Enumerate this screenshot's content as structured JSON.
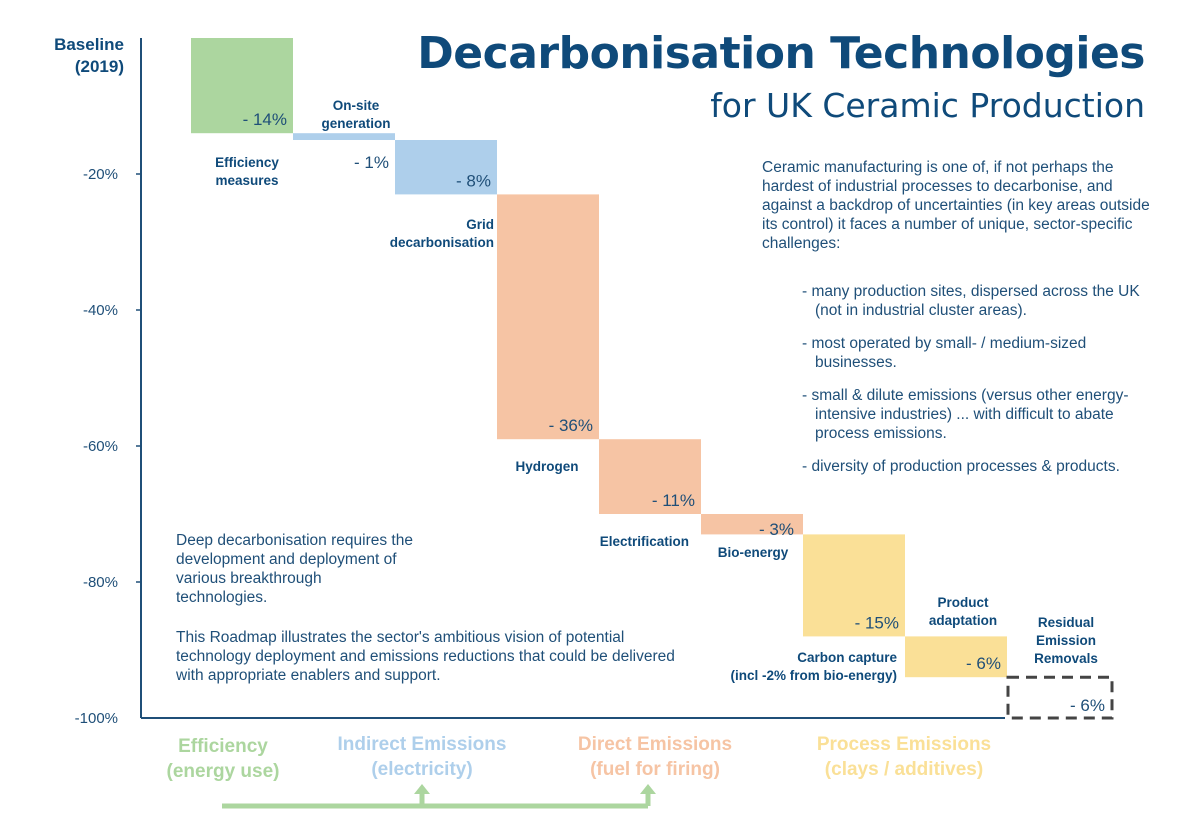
{
  "title": "Decarbonisation Technologies",
  "subtitle": "for UK Ceramic Production",
  "intro_text": "Ceramic manufacturing is one of, if not perhaps the hardest of industrial processes to decarbonise, and against a backdrop of uncertainties (in key areas outside its control) it faces a number of unique, sector-specific challenges:",
  "bullets": [
    "- many production sites, dispersed across the UK (not in industrial cluster areas).",
    "- most operated by small- / medium-sized businesses.",
    "- small & dilute emissions (versus other energy-intensive industries) ... with difficult to abate process emissions.",
    "- diversity of production processes & products."
  ],
  "note_1": "Deep decarbonisation requires the development and deployment of various breakthrough technologies.",
  "note_2": "This Roadmap illustrates the sector's ambitious vision of potential technology deployment and emissions reductions that could be delivered with appropriate enablers and support.",
  "colors": {
    "title": "#0f4a7a",
    "efficiency": "#acd69f",
    "indirect": "#aecfeb",
    "direct": "#f6c4a4",
    "process": "#fae097",
    "residual": "#444444"
  },
  "chart_data": {
    "type": "waterfall",
    "ylim": [
      -100,
      0
    ],
    "yticks": [
      0,
      -20,
      -40,
      -60,
      -80,
      -100
    ],
    "ytick_labels": [
      "Baseline\n(2019)",
      "-20%",
      "-40%",
      "-60%",
      "-80%",
      "-100%"
    ],
    "steps": [
      {
        "label": "Efficiency\nmeasures",
        "value": -14,
        "value_label": "- 14%",
        "group": "efficiency"
      },
      {
        "label": "On-site\ngeneration",
        "value": -1,
        "value_label": "- 1%",
        "group": "indirect"
      },
      {
        "label": "Grid\ndecarbonisation",
        "value": -8,
        "value_label": "- 8%",
        "group": "indirect"
      },
      {
        "label": "Hydrogen",
        "value": -36,
        "value_label": "- 36%",
        "group": "direct"
      },
      {
        "label": "Electrification",
        "value": -11,
        "value_label": "- 11%",
        "group": "direct"
      },
      {
        "label": "Bio-energy",
        "value": -3,
        "value_label": "- 3%",
        "group": "direct"
      },
      {
        "label": "Carbon capture\n(incl -2% from bio-energy)",
        "value": -15,
        "value_label": "- 15%",
        "group": "process"
      },
      {
        "label": "Product\nadaptation",
        "value": -6,
        "value_label": "- 6%",
        "group": "process"
      },
      {
        "label": "Residual\nEmission\nRemovals",
        "value": -6,
        "value_label": "- 6%",
        "group": "residual"
      }
    ],
    "categories": [
      {
        "name": "Efficiency\n(energy use)",
        "color": "#acd69f"
      },
      {
        "name": "Indirect Emissions\n(electricity)",
        "color": "#aecfeb"
      },
      {
        "name": "Direct Emissions\n(fuel for firing)",
        "color": "#f6c4a4"
      },
      {
        "name": "Process Emissions\n(clays / additives)",
        "color": "#fae097"
      }
    ]
  }
}
